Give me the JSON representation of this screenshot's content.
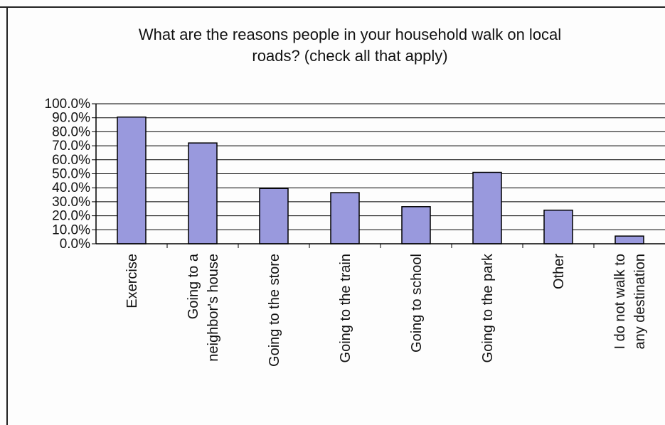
{
  "chart_data": {
    "type": "bar",
    "title_lines": [
      "What are the reasons people in your household walk on local",
      "roads?  (check all that apply)"
    ],
    "categories": [
      [
        "Exercise"
      ],
      [
        "Going to a",
        "neighbor's house"
      ],
      [
        "Going to the store"
      ],
      [
        "Going to the train"
      ],
      [
        "Going to school"
      ],
      [
        "Going to the park"
      ],
      [
        "Other"
      ],
      [
        "I do not walk to",
        "any destination"
      ]
    ],
    "values": [
      90.5,
      72.0,
      39.5,
      36.5,
      26.5,
      51.0,
      24.0,
      5.5
    ],
    "ylim": [
      0,
      100
    ],
    "yticks": [
      "0.0%",
      "10.0%",
      "20.0%",
      "30.0%",
      "40.0%",
      "50.0%",
      "60.0%",
      "70.0%",
      "80.0%",
      "90.0%",
      "100.0%"
    ],
    "grid": true,
    "colors": {
      "bar_fill": "#9999dd",
      "bar_stroke": "#000000",
      "grid": "#000000"
    }
  }
}
